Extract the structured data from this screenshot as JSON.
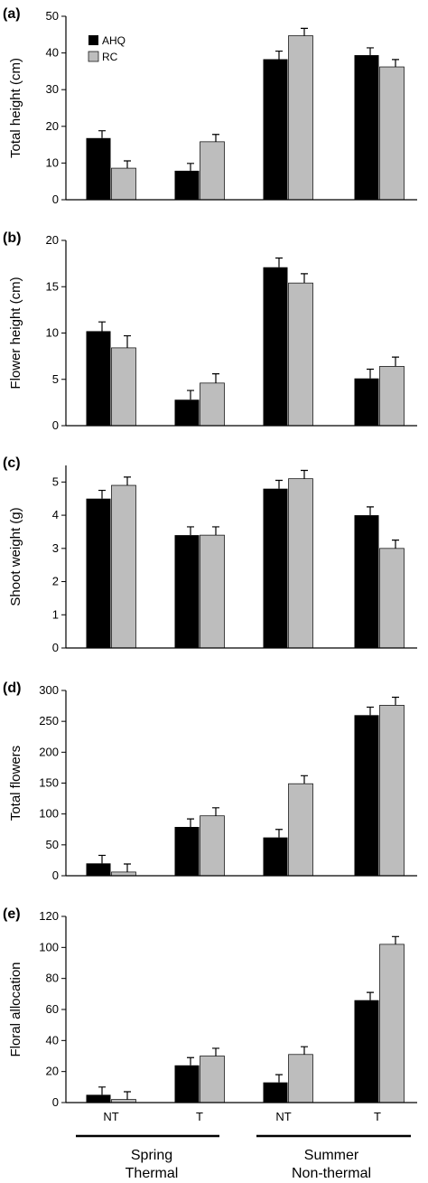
{
  "colors": {
    "AHQ": "#000000",
    "RC": "#bdbdbd",
    "axis": "#000000"
  },
  "legend": {
    "labels": [
      "AHQ",
      "RC"
    ]
  },
  "x_categories": [
    "NT",
    "T",
    "NT",
    "T"
  ],
  "groups": [
    {
      "line1": "Spring",
      "line2": "Thermal"
    },
    {
      "line1": "Summer",
      "line2": "Non-thermal"
    }
  ],
  "chart_data": [
    {
      "type": "bar",
      "panel": "(a)",
      "ylabel": "Total height (cm)",
      "ylim": [
        0,
        50
      ],
      "yticks": [
        0,
        10,
        20,
        30,
        40,
        50
      ],
      "categories": [
        "NT",
        "T",
        "NT",
        "T"
      ],
      "series": [
        {
          "name": "AHQ",
          "values": [
            16.8,
            7.9,
            38.3,
            39.4
          ],
          "errors": [
            2.0,
            2.0,
            2.2,
            2.0
          ]
        },
        {
          "name": "RC",
          "values": [
            8.6,
            15.8,
            44.7,
            36.2
          ],
          "errors": [
            2.0,
            2.0,
            2.0,
            2.0
          ]
        }
      ]
    },
    {
      "type": "bar",
      "panel": "(b)",
      "ylabel": "Flower height (cm)",
      "ylim": [
        0,
        20
      ],
      "yticks": [
        0,
        5,
        10,
        15,
        20
      ],
      "categories": [
        "NT",
        "T",
        "NT",
        "T"
      ],
      "series": [
        {
          "name": "AHQ",
          "values": [
            10.2,
            2.8,
            17.1,
            5.1
          ],
          "errors": [
            1.0,
            1.0,
            1.0,
            1.0
          ]
        },
        {
          "name": "RC",
          "values": [
            8.4,
            4.6,
            15.4,
            6.4
          ],
          "errors": [
            1.3,
            1.0,
            1.0,
            1.0
          ]
        }
      ]
    },
    {
      "type": "bar",
      "panel": "(c)",
      "ylabel": "Shoot weight (g)",
      "ylim": [
        0,
        5.5
      ],
      "yticks": [
        0,
        1,
        2,
        3,
        4,
        5
      ],
      "categories": [
        "NT",
        "T",
        "NT",
        "T"
      ],
      "series": [
        {
          "name": "AHQ",
          "values": [
            4.5,
            3.4,
            4.8,
            4.0
          ],
          "errors": [
            0.25,
            0.25,
            0.25,
            0.25
          ]
        },
        {
          "name": "RC",
          "values": [
            4.9,
            3.4,
            5.1,
            3.0
          ],
          "errors": [
            0.25,
            0.25,
            0.25,
            0.25
          ]
        }
      ]
    },
    {
      "type": "bar",
      "panel": "(d)",
      "ylabel": "Total flowers",
      "ylim": [
        0,
        300
      ],
      "yticks": [
        0,
        50,
        100,
        150,
        200,
        250,
        300
      ],
      "categories": [
        "NT",
        "T",
        "NT",
        "T"
      ],
      "series": [
        {
          "name": "AHQ",
          "values": [
            20,
            79,
            62,
            260
          ],
          "errors": [
            13,
            13,
            13,
            13
          ]
        },
        {
          "name": "RC",
          "values": [
            6,
            97,
            149,
            276
          ],
          "errors": [
            13,
            13,
            13,
            13
          ]
        }
      ]
    },
    {
      "type": "bar",
      "panel": "(e)",
      "ylabel": "Floral allocation",
      "ylim": [
        0,
        120
      ],
      "yticks": [
        0,
        20,
        40,
        60,
        80,
        100,
        120
      ],
      "categories": [
        "NT",
        "T",
        "NT",
        "T"
      ],
      "series": [
        {
          "name": "AHQ",
          "values": [
            5,
            24,
            13,
            66
          ],
          "errors": [
            5,
            5,
            5,
            5
          ]
        },
        {
          "name": "RC",
          "values": [
            2,
            30,
            31,
            102
          ],
          "errors": [
            5,
            5,
            5,
            5
          ]
        }
      ]
    }
  ]
}
